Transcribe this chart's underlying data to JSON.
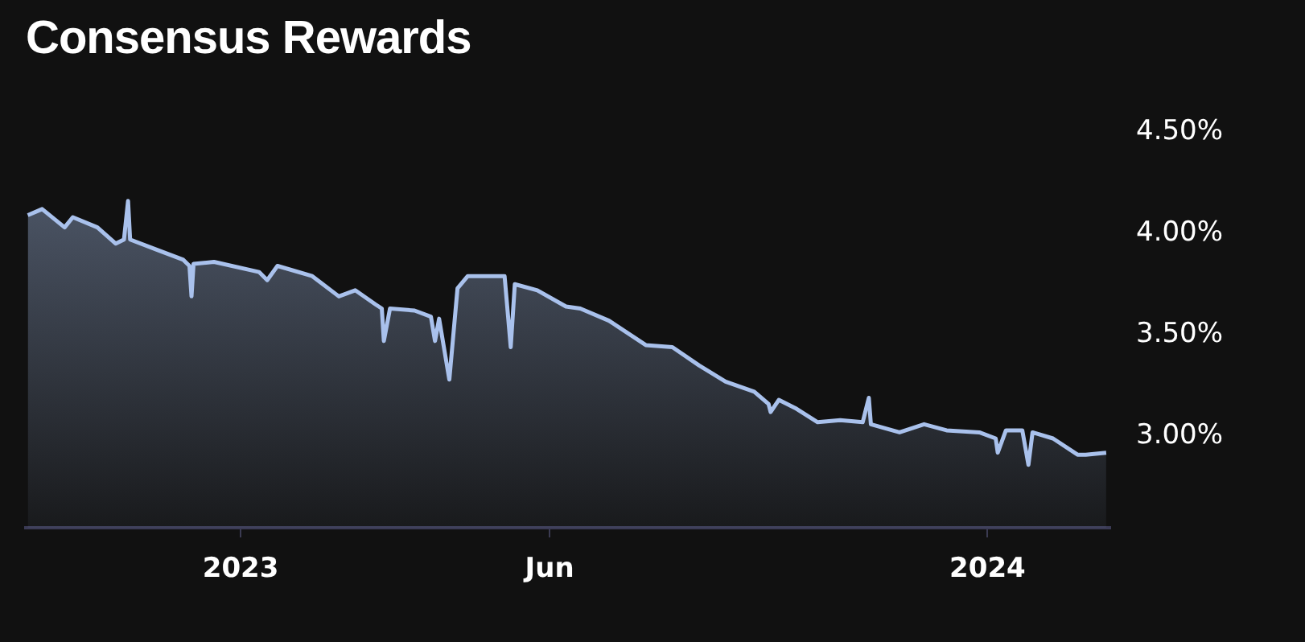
{
  "chart_data": {
    "type": "area",
    "title": "Consensus Rewards",
    "x": [
      "2022-09-19",
      "2022-09-26",
      "2022-10-07",
      "2022-10-11",
      "2022-10-23",
      "2022-11-01",
      "2022-11-05",
      "2022-11-07",
      "2022-11-08",
      "2022-11-21",
      "2022-12-04",
      "2022-12-07",
      "2022-12-08",
      "2022-12-09",
      "2022-12-19",
      "2023-01-10",
      "2023-01-14",
      "2023-01-19",
      "2023-02-05",
      "2023-02-18",
      "2023-02-26",
      "2023-03-08",
      "2023-03-11",
      "2023-03-12",
      "2023-03-15",
      "2023-03-27",
      "2023-04-04",
      "2023-04-06",
      "2023-04-08",
      "2023-04-13",
      "2023-04-17",
      "2023-04-22",
      "2023-05-10",
      "2023-05-13",
      "2023-05-15",
      "2023-05-26",
      "2023-06-09",
      "2023-06-16",
      "2023-06-30",
      "2023-07-18",
      "2023-07-31",
      "2023-08-13",
      "2023-08-26",
      "2023-09-09",
      "2023-09-16",
      "2023-09-17",
      "2023-09-21",
      "2023-09-29",
      "2023-10-10",
      "2023-10-21",
      "2023-11-01",
      "2023-11-04",
      "2023-11-05",
      "2023-11-19",
      "2023-12-01",
      "2023-12-12",
      "2023-12-28",
      "2024-01-05",
      "2024-01-06",
      "2024-01-10",
      "2024-01-18",
      "2024-01-21",
      "2024-01-23",
      "2024-02-02",
      "2024-02-14",
      "2024-02-18",
      "2024-02-28"
    ],
    "series": [
      {
        "color": "#a9c1ec",
        "values": [
          4.09,
          4.12,
          4.03,
          4.08,
          4.03,
          3.95,
          3.97,
          4.16,
          3.97,
          3.92,
          3.87,
          3.84,
          3.69,
          3.85,
          3.86,
          3.81,
          3.77,
          3.84,
          3.79,
          3.69,
          3.72,
          3.65,
          3.63,
          3.47,
          3.63,
          3.62,
          3.59,
          3.47,
          3.58,
          3.28,
          3.73,
          3.79,
          3.79,
          3.44,
          3.75,
          3.72,
          3.64,
          3.63,
          3.57,
          3.45,
          3.44,
          3.35,
          3.27,
          3.22,
          3.16,
          3.12,
          3.18,
          3.14,
          3.07,
          3.08,
          3.07,
          3.19,
          3.06,
          3.02,
          3.06,
          3.03,
          3.02,
          2.99,
          2.92,
          3.03,
          3.03,
          2.86,
          3.02,
          2.99,
          2.91,
          2.91,
          2.92
        ]
      }
    ],
    "xlim": [
      "2022-09-18",
      "2024-03-01"
    ],
    "xticks": [
      {
        "value": "2023-01-01",
        "label": "2023"
      },
      {
        "value": "2023-06-01",
        "label": "Jun"
      },
      {
        "value": "2024-01-01",
        "label": "2024"
      }
    ],
    "ylim": [
      2.55,
      4.5
    ],
    "yticks": [
      {
        "value": 3,
        "label": "3.00%"
      },
      {
        "value": 3.5,
        "label": "3.50%"
      },
      {
        "value": 4,
        "label": "4.00%"
      },
      {
        "value": 4.5,
        "label": "4.50%"
      }
    ],
    "grid": false,
    "legend": false
  }
}
